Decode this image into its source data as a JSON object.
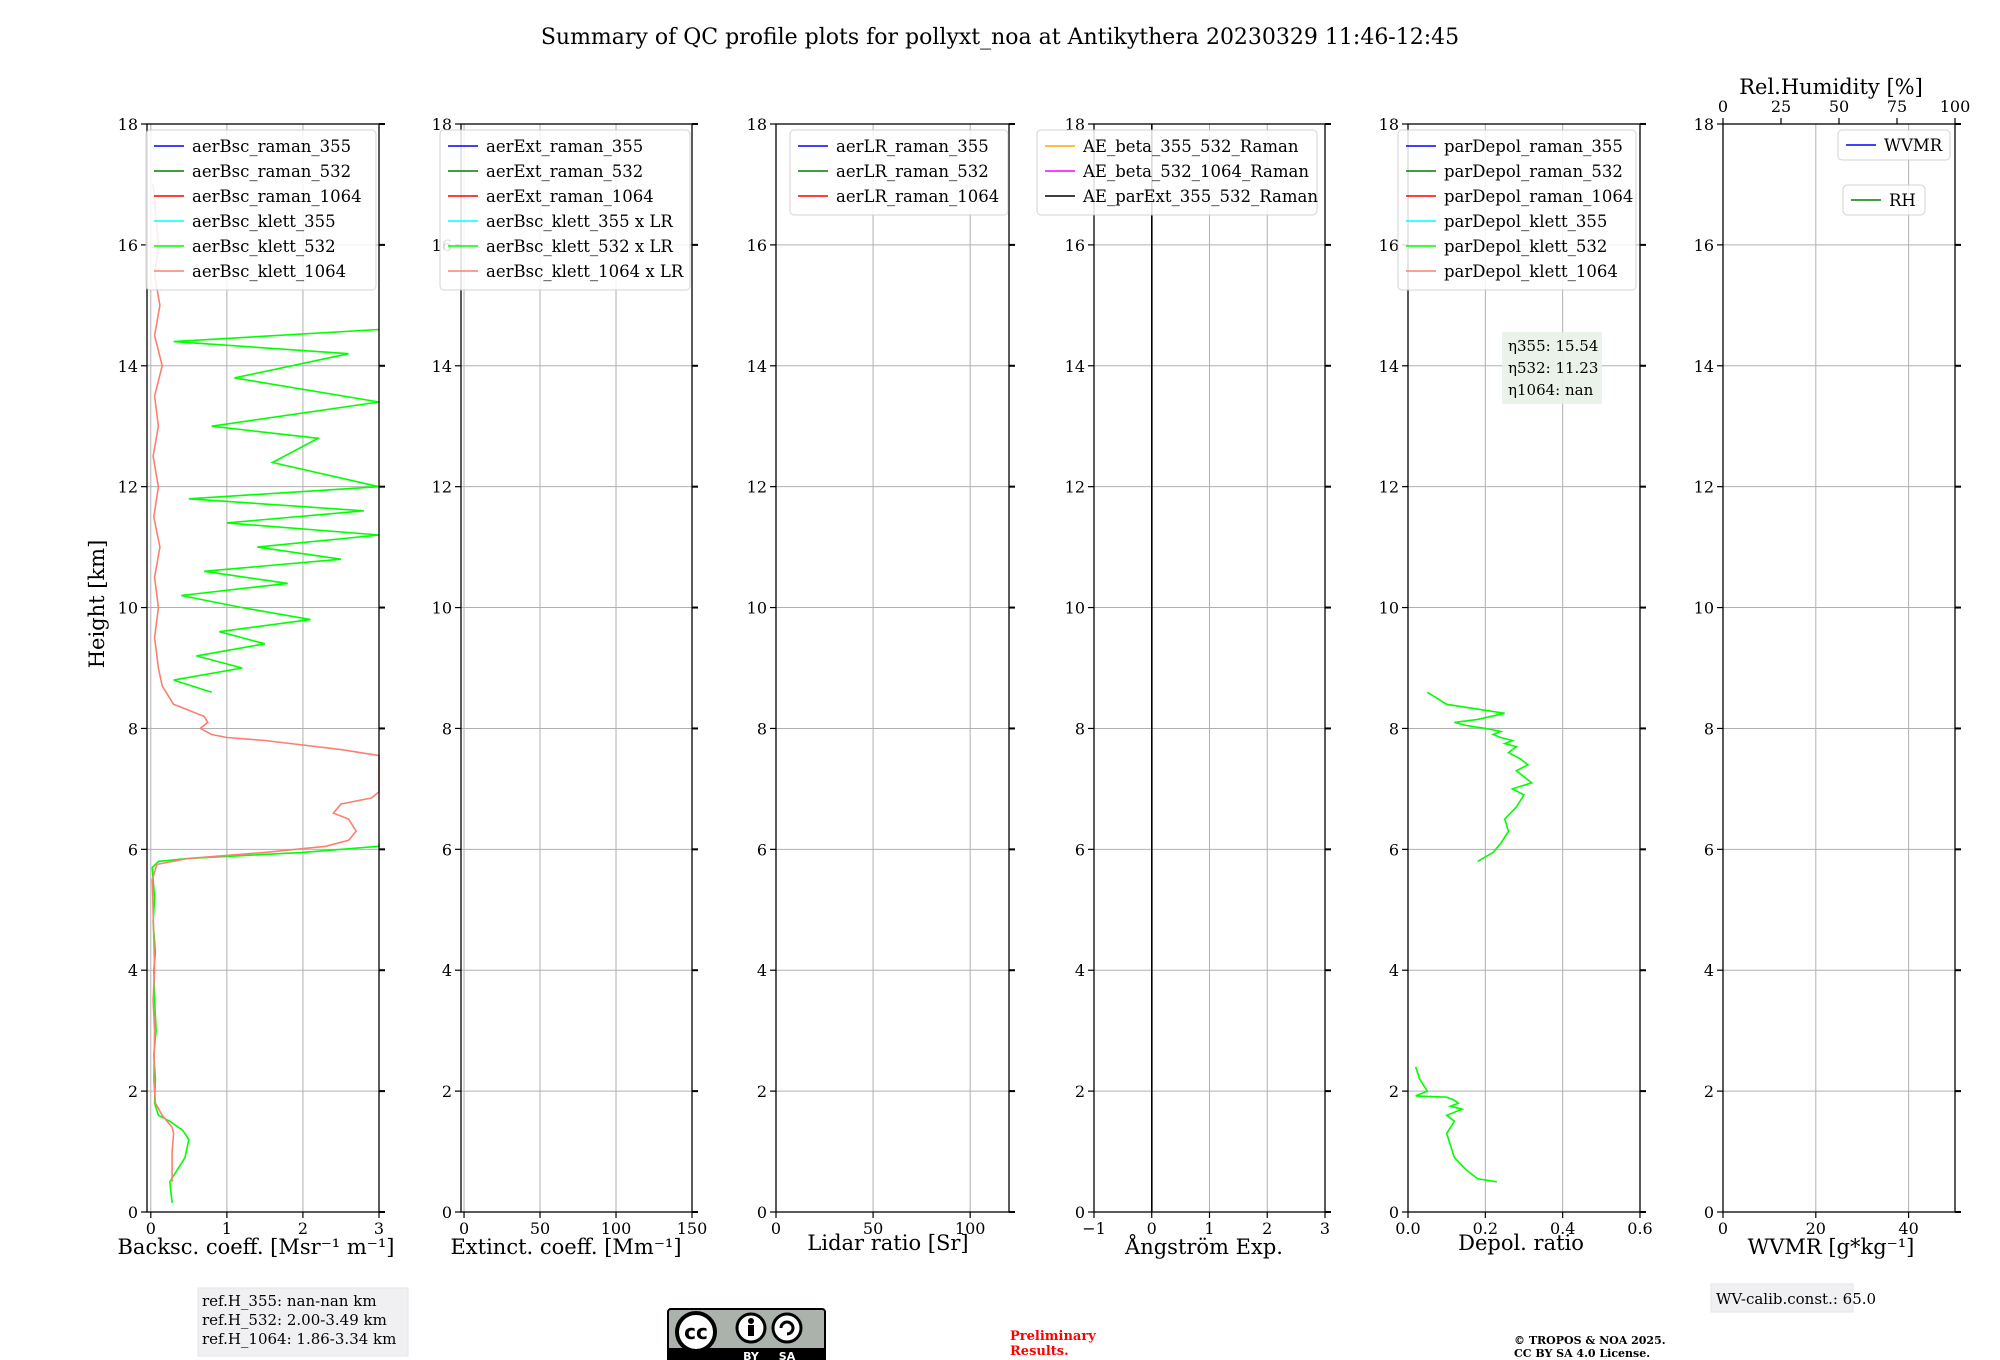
{
  "title": "Summary of QC profile plots for pollyxt_noa at Antikythera 20230329 11:46-12:45",
  "colors": {
    "raman_355": "#0000ff",
    "raman_532": "#008000",
    "raman_1064": "#ff0000",
    "klett_355": "#00ffff",
    "klett_532": "#00ff00",
    "klett_1064": "#fa8072",
    "ae_355_532": "#ffa500",
    "ae_532_1064": "#ff00ff",
    "ae_parext": "#000000"
  },
  "chart_data": [
    {
      "type": "line",
      "xlabel": "Backsc. coeff. [Msr⁻¹ m⁻¹]",
      "ylabel": "Height [km]",
      "xlim": [
        -0.05,
        3.0
      ],
      "ylim": [
        0,
        18
      ],
      "xticks": [
        "0",
        "1",
        "2",
        "3"
      ],
      "yticks": [
        "0",
        "2",
        "4",
        "6",
        "8",
        "10",
        "12",
        "14",
        "16",
        "18"
      ],
      "grid": true,
      "legend_position": "top-right",
      "legend": [
        "aerBsc_raman_355",
        "aerBsc_raman_532",
        "aerBsc_raman_1064",
        "aerBsc_klett_355",
        "aerBsc_klett_532",
        "aerBsc_klett_1064"
      ],
      "series": [
        {
          "name": "aerBsc_klett_532",
          "color": "#00ff00",
          "x": [
            0.28,
            0.25,
            0.3,
            0.45,
            0.5,
            0.42,
            0.25,
            0.1,
            0.05,
            0.06,
            0.04,
            0.07,
            0.05,
            0.04,
            0.06,
            0.03,
            0.05,
            0.03,
            0.02,
            0.1,
            0.5,
            2.0,
            3.0,
            3.0
          ],
          "y": [
            0.15,
            0.5,
            0.6,
            0.9,
            1.2,
            1.35,
            1.5,
            1.6,
            1.8,
            2.2,
            2.6,
            3.0,
            3.5,
            4.0,
            4.3,
            4.8,
            5.2,
            5.5,
            5.7,
            5.8,
            5.85,
            5.95,
            6.05,
            6.1
          ]
        },
        {
          "name": "aerBsc_klett_1064",
          "color": "#fa8072",
          "x": [
            0.28,
            0.28,
            0.3,
            0.28,
            0.15,
            0.06,
            0.04,
            0.05,
            0.03,
            0.05,
            0.04,
            0.03,
            0.02,
            0.08,
            0.5,
            1.5,
            2.3,
            2.6,
            2.7,
            2.6,
            2.4,
            2.5,
            2.9,
            3.0,
            3.0,
            2.5,
            1.5,
            1.0,
            0.8,
            0.65,
            0.75,
            0.7,
            0.5,
            0.3,
            0.15,
            0.1,
            0.05,
            0.1,
            0.05,
            0.12,
            0.04,
            0.1,
            0.03,
            0.1,
            0.05,
            0.15,
            0.05,
            0.12,
            0.05,
            0.1,
            0.03
          ],
          "y": [
            0.5,
            1.0,
            1.3,
            1.4,
            1.6,
            1.8,
            2.2,
            3.0,
            3.5,
            4.0,
            4.5,
            5.0,
            5.5,
            5.75,
            5.85,
            5.95,
            6.05,
            6.15,
            6.3,
            6.5,
            6.6,
            6.75,
            6.85,
            6.95,
            7.55,
            7.65,
            7.8,
            7.85,
            7.9,
            8.0,
            8.1,
            8.2,
            8.3,
            8.4,
            8.7,
            9.0,
            9.5,
            10.0,
            10.5,
            11.0,
            11.5,
            12.0,
            12.5,
            13.0,
            13.5,
            14.0,
            14.5,
            15.0,
            15.5,
            16.0,
            17.0
          ]
        },
        {
          "name": "aerBsc_klett_532 (upper)",
          "color": "#00ff00",
          "x": [
            0.8,
            0.3,
            1.2,
            0.6,
            1.5,
            0.9,
            2.1,
            1.2,
            0.4,
            1.8,
            0.7,
            2.5,
            1.4,
            3.0,
            1.0,
            2.8,
            0.5,
            3.0,
            1.6,
            2.2,
            0.8,
            3.0,
            1.1,
            2.6,
            0.3,
            3.0
          ],
          "y": [
            8.6,
            8.8,
            9.0,
            9.2,
            9.4,
            9.6,
            9.8,
            10.0,
            10.2,
            10.4,
            10.6,
            10.8,
            11.0,
            11.2,
            11.4,
            11.6,
            11.8,
            12.0,
            12.4,
            12.8,
            13.0,
            13.4,
            13.8,
            14.2,
            14.4,
            14.6
          ]
        }
      ]
    },
    {
      "type": "line",
      "xlabel": "Extinct. coeff. [Mm⁻¹]",
      "xlim": [
        -2,
        150
      ],
      "ylim": [
        0,
        18
      ],
      "xticks": [
        "0",
        "50",
        "100",
        "150"
      ],
      "yticks": [
        "0",
        "2",
        "4",
        "6",
        "8",
        "10",
        "12",
        "14",
        "16",
        "18"
      ],
      "grid": true,
      "legend_position": "top-right",
      "legend": [
        "aerExt_raman_355",
        "aerExt_raman_532",
        "aerExt_raman_1064",
        "aerBsc_klett_355 x LR",
        "aerBsc_klett_532 x LR",
        "aerBsc_klett_1064 x LR"
      ]
    },
    {
      "type": "line",
      "xlabel": "Lidar ratio [Sr]",
      "xlim": [
        0,
        120
      ],
      "ylim": [
        0,
        18
      ],
      "xticks": [
        "0",
        "50",
        "100"
      ],
      "yticks": [
        "0",
        "2",
        "4",
        "6",
        "8",
        "10",
        "12",
        "14",
        "16",
        "18"
      ],
      "grid": true,
      "legend_position": "top-right",
      "legend": [
        "aerLR_raman_355",
        "aerLR_raman_532",
        "aerLR_raman_1064"
      ]
    },
    {
      "type": "line",
      "xlabel": "Ångström Exp.",
      "xlim": [
        -1,
        3
      ],
      "ylim": [
        0,
        18
      ],
      "xticks": [
        "−1",
        "0",
        "1",
        "2",
        "3"
      ],
      "yticks": [
        "0",
        "2",
        "4",
        "6",
        "8",
        "10",
        "12",
        "14",
        "16",
        "18"
      ],
      "grid": true,
      "legend_position": "top-right",
      "legend": [
        "AE_beta_355_532_Raman",
        "AE_beta_532_1064_Raman",
        "AE_parExt_355_532_Raman"
      ],
      "series": [
        {
          "name": "AE_parExt_355_532_Raman",
          "color": "#000000",
          "x": [
            0,
            0
          ],
          "y": [
            0,
            18
          ]
        }
      ]
    },
    {
      "type": "line",
      "xlabel": "Depol. ratio",
      "xlim": [
        0,
        0.6
      ],
      "ylim": [
        0,
        18
      ],
      "xticks": [
        "0.0",
        "0.2",
        "0.4",
        "0.6"
      ],
      "yticks": [
        "0",
        "2",
        "4",
        "6",
        "8",
        "10",
        "12",
        "14",
        "16",
        "18"
      ],
      "grid": true,
      "legend_position": "top-right",
      "legend": [
        "parDepol_raman_355",
        "parDepol_raman_532",
        "parDepol_raman_1064",
        "parDepol_klett_355",
        "parDepol_klett_532",
        "parDepol_klett_1064"
      ],
      "annotations": [
        "η355: 15.54",
        "η532: 11.23",
        "η1064: nan"
      ],
      "series": [
        {
          "name": "parDepol_klett_532",
          "color": "#00ff00",
          "x": [
            0.23,
            0.18,
            0.15,
            0.12,
            0.11,
            0.1,
            0.12,
            0.1,
            0.14,
            0.11,
            0.13,
            0.12,
            0.1,
            0.02,
            0.05,
            0.03,
            0.02
          ],
          "y": [
            0.5,
            0.55,
            0.7,
            0.9,
            1.1,
            1.3,
            1.5,
            1.6,
            1.7,
            1.75,
            1.8,
            1.85,
            1.9,
            1.92,
            2.0,
            2.2,
            2.4
          ]
        },
        {
          "name": "parDepol_klett_532 (mid)",
          "color": "#00ff00",
          "x": [
            0.18,
            0.22,
            0.24,
            0.26,
            0.25,
            0.28,
            0.3,
            0.27,
            0.32,
            0.3,
            0.28,
            0.31,
            0.29,
            0.26,
            0.28,
            0.25,
            0.27,
            0.24,
            0.22,
            0.24,
            0.2,
            0.15,
            0.12,
            0.18,
            0.25,
            0.2,
            0.1,
            0.05
          ],
          "y": [
            5.8,
            5.95,
            6.1,
            6.3,
            6.5,
            6.7,
            6.9,
            7.0,
            7.1,
            7.2,
            7.3,
            7.4,
            7.5,
            7.6,
            7.7,
            7.75,
            7.8,
            7.85,
            7.9,
            7.95,
            8.0,
            8.05,
            8.1,
            8.15,
            8.25,
            8.3,
            8.4,
            8.6
          ]
        }
      ]
    },
    {
      "type": "line",
      "xlabel": "WVMR [g*kg⁻¹]",
      "top_xlabel": "Rel.Humidity [%]",
      "xlim": [
        0,
        50
      ],
      "top_xlim": [
        0,
        100
      ],
      "ylim": [
        0,
        18
      ],
      "xticks": [
        "0",
        "20",
        "40"
      ],
      "top_xticks": [
        "0",
        "25",
        "50",
        "75",
        "100"
      ],
      "yticks": [
        "0",
        "2",
        "4",
        "6",
        "8",
        "10",
        "12",
        "14",
        "16",
        "18"
      ],
      "grid": true,
      "legend_position": "top-right",
      "legend": [
        "WVMR",
        "RH"
      ]
    }
  ],
  "footer": {
    "ref_355": "ref.H_355: nan-nan km",
    "ref_532": "ref.H_532: 2.00-3.49 km",
    "ref_1064": "ref.H_1064: 1.86-3.34 km",
    "license_by": "BY",
    "license_sa": "SA",
    "license_cc": "cc",
    "preliminary_1": "Preliminary",
    "preliminary_2": "Results.",
    "copyright_1": "© TROPOS & NOA 2025.",
    "copyright_2": "CC BY SA 4.0 License.",
    "wv_calib": "WV-calib.const.: 65.0"
  }
}
